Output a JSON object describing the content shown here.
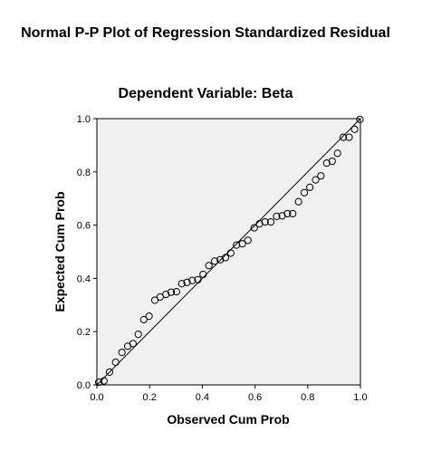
{
  "chart_data": {
    "type": "scatter",
    "title": "Normal P-P Plot of Regression Standardized Residual",
    "subtitle": "Dependent Variable: Beta",
    "xlabel": "Observed Cum Prob",
    "ylabel": "Expected Cum Prob",
    "xlim": [
      0.0,
      1.0
    ],
    "ylim": [
      0.0,
      1.0
    ],
    "x_ticks": [
      "0.0",
      "0.2",
      "0.4",
      "0.6",
      "0.8",
      "1.0"
    ],
    "y_ticks": [
      "0.0",
      "0.2",
      "0.4",
      "0.6",
      "0.8",
      "1.0"
    ],
    "grid": false,
    "legend": "none",
    "reference_line": {
      "from": [
        0,
        0
      ],
      "to": [
        1,
        1
      ]
    },
    "plot_background": "#f0f0f0",
    "points": [
      [
        0.007,
        0.01
      ],
      [
        0.027,
        0.015
      ],
      [
        0.048,
        0.048
      ],
      [
        0.071,
        0.085
      ],
      [
        0.095,
        0.122
      ],
      [
        0.117,
        0.145
      ],
      [
        0.137,
        0.155
      ],
      [
        0.157,
        0.19
      ],
      [
        0.178,
        0.245
      ],
      [
        0.198,
        0.258
      ],
      [
        0.22,
        0.318
      ],
      [
        0.24,
        0.33
      ],
      [
        0.262,
        0.34
      ],
      [
        0.282,
        0.348
      ],
      [
        0.302,
        0.35
      ],
      [
        0.322,
        0.38
      ],
      [
        0.342,
        0.385
      ],
      [
        0.362,
        0.392
      ],
      [
        0.383,
        0.395
      ],
      [
        0.403,
        0.415
      ],
      [
        0.425,
        0.448
      ],
      [
        0.447,
        0.465
      ],
      [
        0.468,
        0.47
      ],
      [
        0.488,
        0.478
      ],
      [
        0.508,
        0.495
      ],
      [
        0.53,
        0.525
      ],
      [
        0.552,
        0.53
      ],
      [
        0.573,
        0.543
      ],
      [
        0.597,
        0.59
      ],
      [
        0.617,
        0.605
      ],
      [
        0.638,
        0.612
      ],
      [
        0.66,
        0.612
      ],
      [
        0.682,
        0.633
      ],
      [
        0.703,
        0.635
      ],
      [
        0.723,
        0.643
      ],
      [
        0.743,
        0.643
      ],
      [
        0.765,
        0.688
      ],
      [
        0.787,
        0.722
      ],
      [
        0.808,
        0.742
      ],
      [
        0.83,
        0.77
      ],
      [
        0.85,
        0.785
      ],
      [
        0.872,
        0.833
      ],
      [
        0.893,
        0.84
      ],
      [
        0.913,
        0.87
      ],
      [
        0.935,
        0.93
      ],
      [
        0.957,
        0.93
      ],
      [
        0.978,
        0.96
      ],
      [
        0.998,
        0.997
      ]
    ]
  }
}
